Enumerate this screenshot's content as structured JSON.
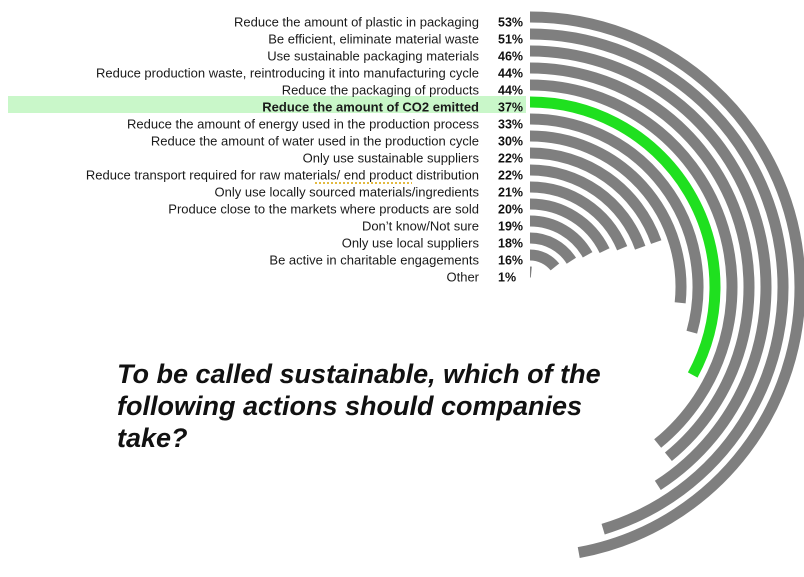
{
  "chart_data": {
    "type": "radial-bar",
    "title": "To be called sustainable, which of the following actions should companies take?",
    "categories": [
      "Reduce the amount of plastic in packaging",
      "Be efficient, eliminate material waste",
      "Use sustainable packaging materials",
      "Reduce production waste, reintroducing it into manufacturing cycle",
      "Reduce the packaging of products",
      "Reduce the amount of CO2 emitted",
      "Reduce the amount of energy used in the production process",
      "Reduce the amount of water used in the production cycle",
      "Only use sustainable suppliers",
      "Reduce transport required for raw materials/ end product distribution",
      "Only use locally sourced materials/ingredients",
      "Produce close to the markets where products are sold",
      "Don’t know/Not sure",
      "Only use local suppliers",
      "Be active in charitable engagements",
      "Other"
    ],
    "values": [
      53,
      51,
      46,
      44,
      44,
      37,
      33,
      30,
      22,
      22,
      21,
      20,
      19,
      18,
      16,
      1
    ],
    "value_labels": [
      "53%",
      "51%",
      "46%",
      "44%",
      "44%",
      "37%",
      "33%",
      "30%",
      "22%",
      "22%",
      "21%",
      "20%",
      "19%",
      "18%",
      "16%",
      "1%"
    ],
    "unit": "%",
    "highlight_index": 5,
    "colors": {
      "bar": "#7f7f7f",
      "highlight_bar": "#1fe01f",
      "highlight_band": "#c9f7c9",
      "underline": "#d9a300"
    }
  }
}
